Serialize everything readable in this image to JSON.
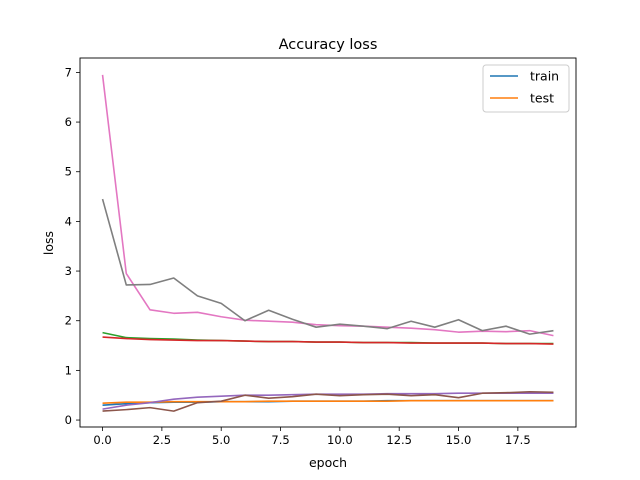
{
  "chart_data": {
    "type": "line",
    "title": "Accuracy loss",
    "xlabel": "epoch",
    "ylabel": "loss",
    "xlim": [
      -0.95,
      19.95
    ],
    "ylim": [
      -0.14,
      7.29
    ],
    "xticks": [
      0,
      2.5,
      5,
      7.5,
      10,
      12.5,
      15,
      17.5
    ],
    "xtick_labels": [
      "0.0",
      "2.5",
      "5.0",
      "7.5",
      "10.0",
      "12.5",
      "15.0",
      "17.5"
    ],
    "yticks": [
      0,
      1,
      2,
      3,
      4,
      5,
      6,
      7
    ],
    "ytick_labels": [
      "0",
      "1",
      "2",
      "3",
      "4",
      "5",
      "6",
      "7"
    ],
    "grid": false,
    "legend": {
      "position": "top-right",
      "entries": [
        {
          "label": "train",
          "color": "#1f77b4"
        },
        {
          "label": "test",
          "color": "#ff7f0e"
        }
      ]
    },
    "x": [
      0,
      1,
      2,
      3,
      4,
      5,
      6,
      7,
      8,
      9,
      10,
      11,
      12,
      13,
      14,
      15,
      16,
      17,
      18,
      19
    ],
    "series": [
      {
        "color": "#1f77b4",
        "values": [
          0.3,
          0.33,
          0.35,
          0.36,
          0.36,
          0.37,
          0.37,
          0.37,
          0.38,
          0.38,
          0.38,
          0.38,
          0.39,
          0.39,
          0.39,
          0.39,
          0.39,
          0.39,
          0.39,
          0.39
        ]
      },
      {
        "color": "#ff7f0e",
        "values": [
          0.34,
          0.36,
          0.36,
          0.37,
          0.37,
          0.37,
          0.37,
          0.38,
          0.38,
          0.38,
          0.38,
          0.38,
          0.38,
          0.39,
          0.39,
          0.39,
          0.39,
          0.39,
          0.39,
          0.39
        ]
      },
      {
        "color": "#2ca02c",
        "values": [
          1.76,
          1.66,
          1.64,
          1.63,
          1.61,
          1.6,
          1.59,
          1.58,
          1.58,
          1.57,
          1.57,
          1.56,
          1.56,
          1.56,
          1.55,
          1.55,
          1.55,
          1.54,
          1.54,
          1.54
        ]
      },
      {
        "color": "#d62728",
        "values": [
          1.67,
          1.64,
          1.62,
          1.61,
          1.6,
          1.6,
          1.59,
          1.58,
          1.58,
          1.57,
          1.57,
          1.56,
          1.56,
          1.55,
          1.55,
          1.55,
          1.55,
          1.54,
          1.54,
          1.53
        ]
      },
      {
        "color": "#9467bd",
        "values": [
          0.22,
          0.3,
          0.35,
          0.42,
          0.46,
          0.48,
          0.5,
          0.5,
          0.51,
          0.52,
          0.52,
          0.52,
          0.53,
          0.53,
          0.53,
          0.54,
          0.54,
          0.54,
          0.54,
          0.54
        ]
      },
      {
        "color": "#8c564b",
        "values": [
          0.18,
          0.21,
          0.25,
          0.18,
          0.35,
          0.38,
          0.5,
          0.44,
          0.47,
          0.52,
          0.49,
          0.51,
          0.52,
          0.49,
          0.51,
          0.45,
          0.54,
          0.55,
          0.57,
          0.56
        ]
      },
      {
        "color": "#e377c2",
        "values": [
          6.95,
          2.95,
          2.22,
          2.15,
          2.17,
          2.08,
          2.01,
          1.99,
          1.97,
          1.92,
          1.9,
          1.89,
          1.87,
          1.85,
          1.82,
          1.77,
          1.79,
          1.78,
          1.8,
          1.7
        ]
      },
      {
        "color": "#7f7f7f",
        "values": [
          4.45,
          2.72,
          2.73,
          2.86,
          2.5,
          2.35,
          2.0,
          2.21,
          2.03,
          1.87,
          1.93,
          1.89,
          1.84,
          1.99,
          1.87,
          2.02,
          1.8,
          1.89,
          1.73,
          1.8
        ]
      }
    ]
  }
}
